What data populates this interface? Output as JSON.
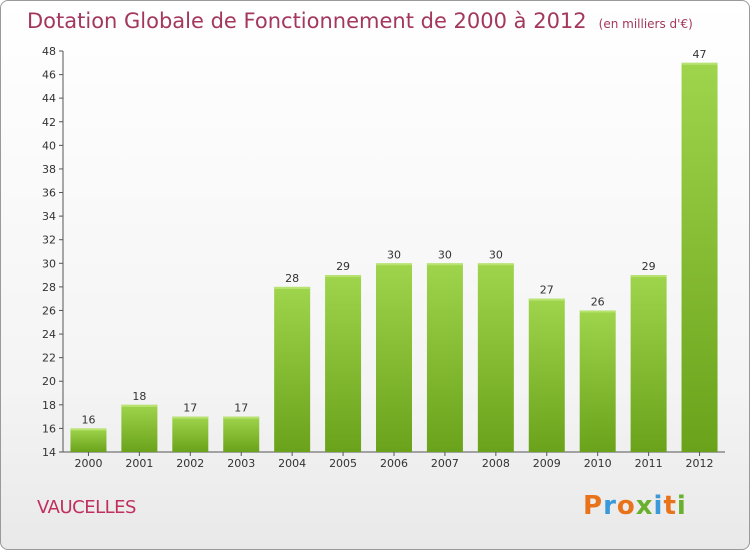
{
  "header": {
    "title": "Dotation Globale de Fonctionnement de 2000 à 2012",
    "unit": "(en milliers d'€)"
  },
  "footer": {
    "commune": "VAUCELLES",
    "logo": "Proxiti"
  },
  "colors": {
    "title": "#a3375d",
    "bar_top": "#9fd54c",
    "bar_bottom": "#6aa21b",
    "logo_letters": [
      "#e8731a",
      "#3a9ad9",
      "#e8731a",
      "#6ab02f",
      "#3a9ad9",
      "#e8731a",
      "#6ab02f"
    ]
  },
  "chart_data": {
    "type": "bar",
    "title": "Dotation Globale de Fonctionnement de 2000 à 2012",
    "subtitle": "(en milliers d'€)",
    "xlabel": "",
    "ylabel": "",
    "categories": [
      "2000",
      "2001",
      "2002",
      "2003",
      "2004",
      "2005",
      "2006",
      "2007",
      "2008",
      "2009",
      "2010",
      "2011",
      "2012"
    ],
    "values": [
      16,
      18,
      17,
      17,
      28,
      29,
      30,
      30,
      30,
      27,
      26,
      29,
      47
    ],
    "ylim": [
      14,
      48
    ],
    "yticks": [
      14,
      16,
      18,
      20,
      22,
      24,
      26,
      28,
      30,
      32,
      34,
      36,
      38,
      40,
      42,
      44,
      46,
      48
    ],
    "grid": false,
    "legend": "none"
  }
}
